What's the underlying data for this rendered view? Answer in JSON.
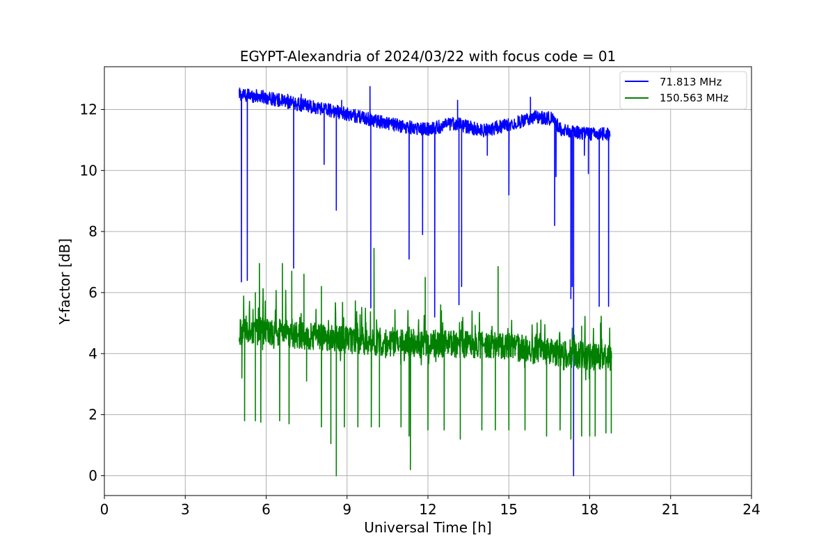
{
  "chart_data": {
    "type": "line",
    "title": "EGYPT-Alexandria of 2024/03/22 with focus code = 01",
    "xlabel": "Universal Time [h]",
    "ylabel": "Y-factor [dB]",
    "xlim": [
      0,
      24
    ],
    "ylim": [
      -0.65,
      13.4
    ],
    "xticks": [
      0,
      3,
      6,
      9,
      12,
      15,
      18,
      21,
      24
    ],
    "yticks": [
      0,
      2,
      4,
      6,
      8,
      10,
      12
    ],
    "grid": true,
    "legend_position": "top-right",
    "series": [
      {
        "name": "71.813 MHz",
        "color": "#0000ff",
        "baseline": [
          [
            5.0,
            12.5
          ],
          [
            6.0,
            12.4
          ],
          [
            7.0,
            12.2
          ],
          [
            8.0,
            12.05
          ],
          [
            9.0,
            11.85
          ],
          [
            10.0,
            11.65
          ],
          [
            11.0,
            11.45
          ],
          [
            12.0,
            11.35
          ],
          [
            13.0,
            11.55
          ],
          [
            14.0,
            11.3
          ],
          [
            15.0,
            11.5
          ],
          [
            16.0,
            11.75
          ],
          [
            16.6,
            11.7
          ],
          [
            17.0,
            11.3
          ],
          [
            18.0,
            11.2
          ],
          [
            18.75,
            11.2
          ]
        ],
        "dips": [
          [
            5.08,
            6.35
          ],
          [
            5.3,
            6.4
          ],
          [
            7.02,
            6.8
          ],
          [
            8.15,
            10.2
          ],
          [
            8.6,
            8.7
          ],
          [
            9.88,
            5.5
          ],
          [
            11.3,
            7.1
          ],
          [
            11.8,
            7.9
          ],
          [
            12.25,
            5.2
          ],
          [
            13.15,
            5.6
          ],
          [
            13.25,
            6.2
          ],
          [
            14.2,
            10.5
          ],
          [
            15.0,
            9.2
          ],
          [
            16.7,
            8.2
          ],
          [
            16.75,
            9.8
          ],
          [
            17.3,
            5.8
          ],
          [
            17.35,
            6.2
          ],
          [
            17.4,
            0.0
          ],
          [
            17.8,
            10.5
          ],
          [
            17.95,
            9.9
          ],
          [
            18.35,
            5.55
          ],
          [
            18.7,
            5.55
          ]
        ],
        "spikes": [
          [
            5.02,
            12.7
          ],
          [
            6.8,
            12.5
          ],
          [
            7.3,
            12.5
          ],
          [
            8.8,
            12.3
          ],
          [
            9.85,
            12.75
          ],
          [
            13.1,
            12.3
          ],
          [
            15.8,
            12.4
          ]
        ]
      },
      {
        "name": "150.563 MHz",
        "color": "#008000",
        "baseline": [
          [
            5.0,
            4.7
          ],
          [
            6.0,
            4.75
          ],
          [
            7.0,
            4.6
          ],
          [
            8.0,
            4.55
          ],
          [
            9.0,
            4.45
          ],
          [
            10.0,
            4.4
          ],
          [
            11.0,
            4.35
          ],
          [
            12.0,
            4.35
          ],
          [
            13.0,
            4.3
          ],
          [
            14.0,
            4.3
          ],
          [
            15.0,
            4.25
          ],
          [
            16.0,
            4.1
          ],
          [
            17.0,
            4.0
          ],
          [
            18.0,
            3.9
          ],
          [
            18.8,
            3.85
          ]
        ],
        "dips": [
          [
            5.1,
            3.2
          ],
          [
            5.2,
            1.8
          ],
          [
            5.6,
            1.8
          ],
          [
            5.8,
            1.75
          ],
          [
            6.5,
            1.8
          ],
          [
            6.85,
            1.7
          ],
          [
            7.5,
            3.1
          ],
          [
            8.05,
            1.6
          ],
          [
            8.4,
            1.05
          ],
          [
            8.6,
            0.0
          ],
          [
            8.9,
            1.6
          ],
          [
            9.4,
            1.6
          ],
          [
            9.9,
            1.6
          ],
          [
            10.2,
            1.6
          ],
          [
            11.0,
            1.6
          ],
          [
            11.3,
            1.3
          ],
          [
            11.35,
            0.2
          ],
          [
            12.0,
            1.5
          ],
          [
            12.6,
            1.5
          ],
          [
            13.2,
            1.2
          ],
          [
            14.0,
            1.5
          ],
          [
            14.5,
            1.5
          ],
          [
            15.0,
            1.5
          ],
          [
            15.6,
            1.5
          ],
          [
            16.4,
            1.3
          ],
          [
            16.9,
            1.5
          ],
          [
            17.3,
            1.2
          ],
          [
            17.7,
            1.3
          ],
          [
            18.0,
            1.3
          ],
          [
            18.2,
            1.3
          ],
          [
            18.6,
            1.4
          ],
          [
            18.8,
            1.4
          ]
        ],
        "spikes": [
          [
            5.6,
            6.0
          ],
          [
            5.75,
            6.95
          ],
          [
            6.6,
            6.95
          ],
          [
            6.95,
            6.7
          ],
          [
            7.4,
            6.6
          ],
          [
            8.05,
            6.2
          ],
          [
            10.0,
            7.45
          ],
          [
            11.9,
            6.5
          ],
          [
            14.6,
            6.85
          ],
          [
            12.5,
            5.4
          ],
          [
            17.7,
            4.9
          ],
          [
            18.4,
            5.0
          ]
        ]
      }
    ]
  }
}
